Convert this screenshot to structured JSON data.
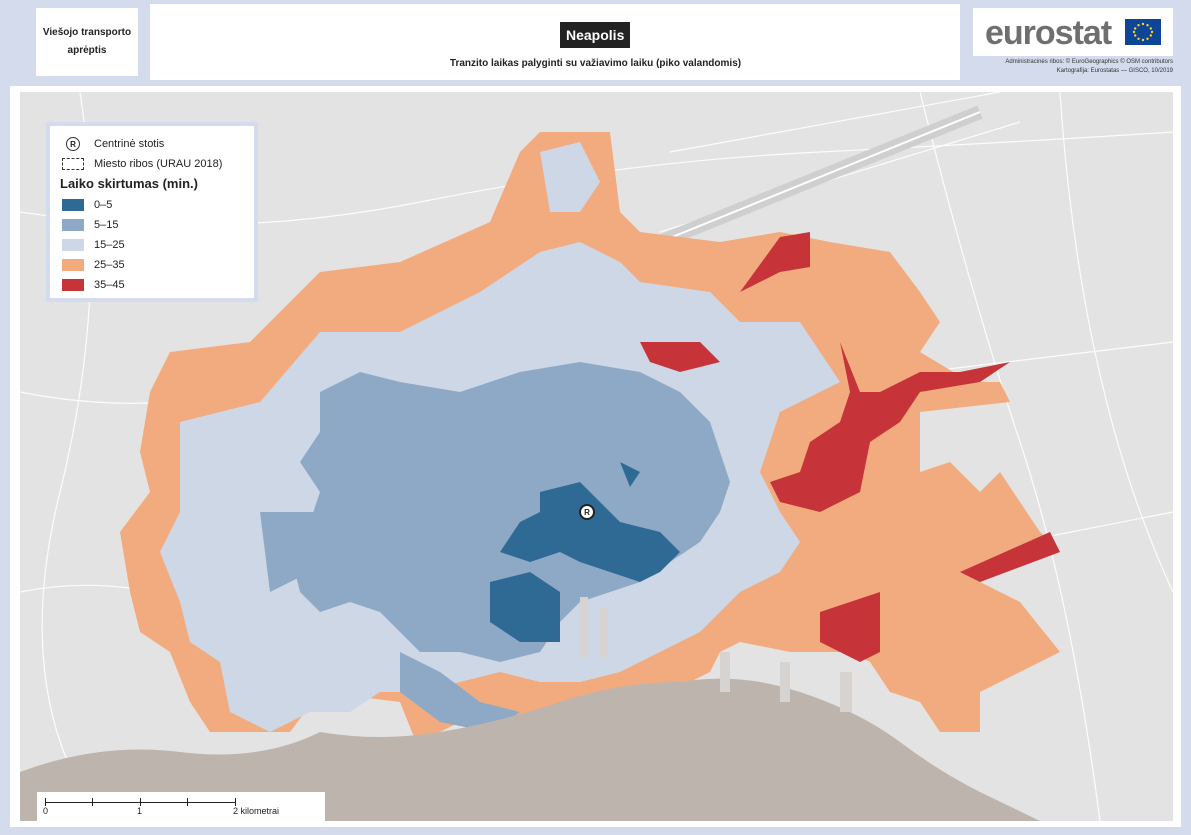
{
  "header": {
    "left_text": "Viešojo transporto aprėptis",
    "title": "Neapolis",
    "subtitle": "Tranzito laikas palyginti su važiavimo laiku (piko valandomis)",
    "brand": "eurostat",
    "credits_line1": "Administracinės ribos: © EuroGeographics © OSM contributors",
    "credits_line2": "Kartografija: Eurostatas — GISCO, 10/2019"
  },
  "legend": {
    "station_label": "Centrinė stotis",
    "boundary_label": "Miesto ribos (URAU 2018)",
    "title": "Laiko skirtumas (min.)",
    "classes": [
      {
        "label": "0–5",
        "color": "#2e6a94"
      },
      {
        "label": "5–15",
        "color": "#8ea9c6"
      },
      {
        "label": "15–25",
        "color": "#cdd7e6"
      },
      {
        "label": "25–35",
        "color": "#f2ab7f"
      },
      {
        "label": "35–45",
        "color": "#c6343a"
      }
    ]
  },
  "scalebar": {
    "labels": [
      "0",
      "1",
      "2 kilometrai"
    ]
  },
  "colors": {
    "sea": "#beb4ae",
    "land": "#e4e3e3",
    "frame": "#d3dbed"
  }
}
